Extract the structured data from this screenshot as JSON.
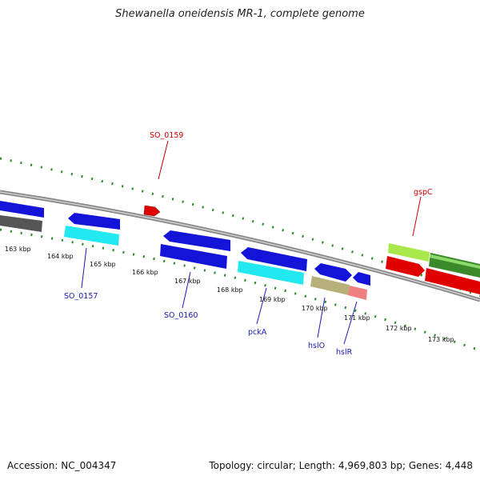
{
  "title": "Shewanella oneidensis MR-1, complete genome",
  "footer": {
    "accession": "Accession: NC_004347",
    "stats": "Topology: circular; Length: 4,969,803 bp; Genes: 4,448"
  },
  "kbp_labels": [
    "163 kbp",
    "164 kbp",
    "165 kbp",
    "166 kbp",
    "167 kbp",
    "168 kbp",
    "169 kbp",
    "170 kbp",
    "171 kbp",
    "172 kbp",
    "173 kbp"
  ],
  "gene_labels": {
    "SO_0159": "SO_0159",
    "gspC": "gspC",
    "SO_0157": "SO_0157",
    "SO_0160": "SO_0160",
    "pckA": "pckA",
    "hslO": "hslO",
    "hslR": "hslR"
  },
  "colors": {
    "blue": "#1414d8",
    "red": "#e00000",
    "cyan": "#22e8f0",
    "olive": "#b8b07a",
    "pink": "#f08080",
    "lime": "#a8e84a",
    "green": "#3a8a2a",
    "gray": "#555555",
    "tick_green": "#2a8a2a",
    "label_red": "#cc0000",
    "label_blue": "#1a1ab0"
  }
}
